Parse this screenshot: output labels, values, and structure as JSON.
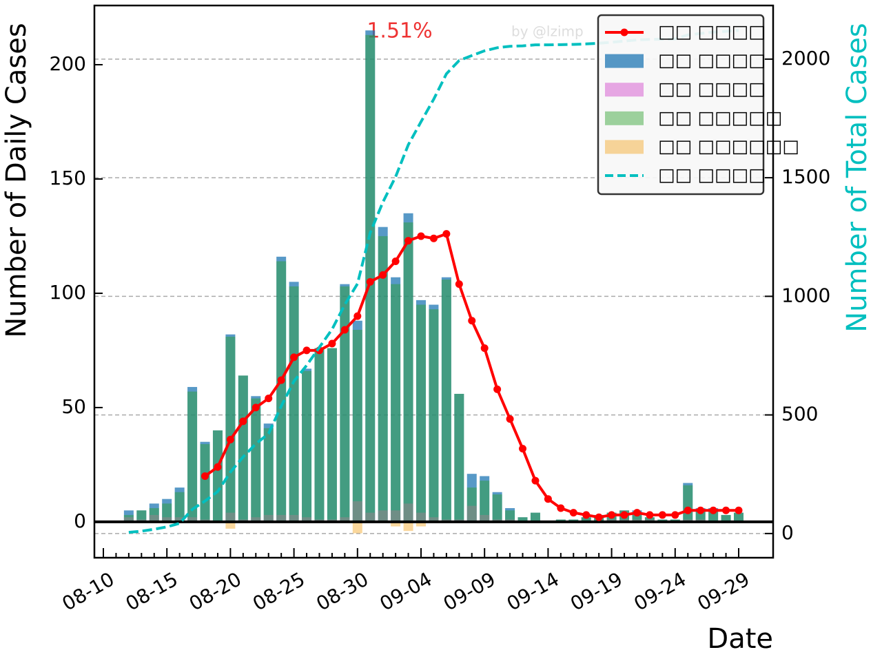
{
  "chart_data": {
    "type": "bar",
    "annotations": [
      "1.51%",
      "by @lzimp"
    ],
    "xlabel": "Date",
    "ylabel": "Number of Daily Cases",
    "y2label": "Number of Total Cases",
    "categories": [
      "08-10",
      null,
      null,
      null,
      null,
      "08-15",
      null,
      null,
      null,
      null,
      "08-20",
      null,
      null,
      null,
      null,
      "08-25",
      null,
      null,
      null,
      null,
      "08-30",
      null,
      null,
      null,
      null,
      "09-04",
      null,
      null,
      null,
      null,
      "09-09",
      null,
      null,
      null,
      null,
      "09-14",
      null,
      null,
      null,
      null,
      "09-19",
      null,
      null,
      null,
      null,
      "09-24",
      null,
      null,
      null,
      null,
      "09-29"
    ],
    "ylim": [
      -15.7,
      225.9
    ],
    "yticks": [
      0,
      50,
      100,
      150,
      200
    ],
    "y2lim": [
      -102,
      2226
    ],
    "y2ticks": [
      0,
      500,
      1000,
      1500,
      2000
    ],
    "grid": true,
    "legend": "upper right",
    "series": [
      {
        "name": "□□ □□□□",
        "type": "line",
        "color": "#ff0000",
        "values": [
          null,
          null,
          null,
          null,
          null,
          null,
          null,
          null,
          20,
          24,
          36,
          44,
          50,
          54,
          62,
          72,
          75,
          75,
          78,
          84,
          90,
          105,
          108,
          114,
          123,
          125,
          124,
          126,
          104,
          88,
          76,
          58,
          45,
          32,
          18,
          10,
          6,
          4,
          3,
          2,
          3,
          3,
          4,
          3,
          3,
          3,
          5,
          5,
          5,
          5,
          5
        ]
      },
      {
        "name": "□□ □□□□",
        "type": "bar",
        "color": "#1f77b4",
        "values": [
          null,
          null,
          5,
          5,
          8,
          10,
          15,
          59,
          35,
          40,
          82,
          64,
          55,
          43,
          116,
          105,
          67,
          76,
          76,
          104,
          88,
          215,
          129,
          107,
          135,
          97,
          95,
          107,
          56,
          21,
          20,
          13,
          6,
          2,
          4,
          0,
          1,
          1,
          2,
          3,
          4,
          5,
          5,
          2,
          1,
          1,
          17,
          6,
          6,
          3,
          4
        ]
      },
      {
        "name": "□□ □□□□",
        "type": "bar",
        "color": "#da70d6",
        "values": [
          null,
          null,
          2,
          1,
          3,
          2,
          2,
          2,
          1,
          0,
          4,
          1,
          2,
          3,
          3,
          3,
          2,
          1,
          1,
          2,
          9,
          4,
          5,
          5,
          8,
          4,
          2,
          1,
          1,
          7,
          3,
          1,
          1,
          0,
          0,
          0,
          0,
          0,
          0,
          0,
          1,
          1,
          1,
          1,
          0,
          0,
          1,
          1,
          0,
          0,
          0
        ]
      },
      {
        "name": "□□ □□□□□",
        "type": "bar",
        "color": "#2ca02c",
        "values": [
          null,
          null,
          3,
          5,
          6,
          8,
          13,
          57,
          34,
          40,
          81,
          64,
          54,
          41,
          114,
          103,
          66,
          76,
          76,
          103,
          84,
          213,
          125,
          104,
          131,
          95,
          93,
          106,
          56,
          15,
          18,
          12,
          5,
          2,
          4,
          0,
          1,
          1,
          2,
          3,
          4,
          5,
          4,
          2,
          1,
          1,
          16,
          5,
          5,
          3,
          4
        ]
      },
      {
        "name": "□□ □□□□□□",
        "type": "bar",
        "color": "#f5a623",
        "values": [
          null,
          null,
          0,
          0,
          0,
          0,
          0,
          0,
          0,
          0,
          -3,
          0,
          0,
          0,
          0,
          0,
          0,
          0,
          0,
          0,
          -5,
          0,
          0,
          -2,
          -4,
          -2,
          0,
          0,
          0,
          0,
          0,
          0,
          0,
          0,
          0,
          0,
          0,
          0,
          0,
          0,
          0,
          0,
          0,
          0,
          0,
          0,
          0,
          0,
          0,
          0,
          0
        ]
      },
      {
        "name": "□□ □□□□",
        "type": "line",
        "axis": "y2",
        "color": "#00bfbf",
        "values": [
          null,
          null,
          5,
          10,
          18,
          28,
          43,
          102,
          137,
          177,
          259,
          323,
          378,
          421,
          537,
          642,
          709,
          785,
          861,
          965,
          1053,
          1268,
          1397,
          1504,
          1639,
          1736,
          1831,
          1938,
          1994,
          2015,
          2035,
          2048,
          2054,
          2056,
          2060,
          2060,
          2061,
          2062,
          2064,
          2067,
          2071,
          2076,
          2081,
          2083,
          2084,
          2085,
          2102,
          2108,
          2114,
          2117,
          2121
        ]
      }
    ]
  }
}
